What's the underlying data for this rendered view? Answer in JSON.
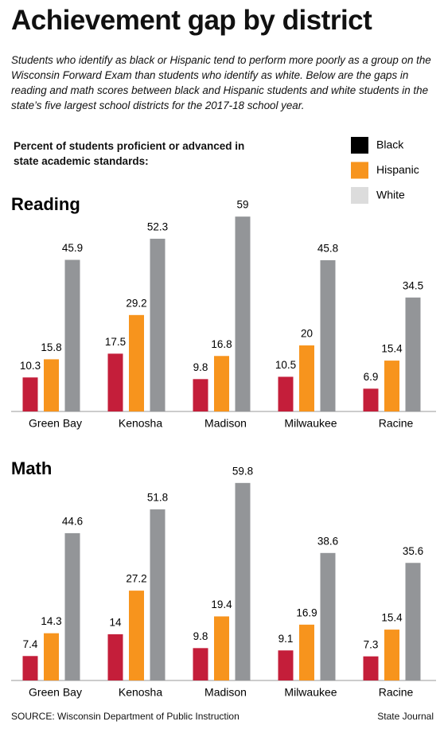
{
  "title": "Achievement gap by district",
  "subtitle": "Students who identify as black or Hispanic tend to perform more poorly as a group on the Wisconsin Forward Exam than students who identify as white. Below are the gaps in reading and math scores between black and Hispanic students and white students in the state’s five largest school districts for the 2017-18 school year.",
  "legend_title": "Percent of students proficient or advanced in state academic standards:",
  "source": "SOURCE: Wisconsin Department of Public Instruction",
  "credit": "State Journal",
  "chart_data": [
    {
      "type": "bar",
      "title": "Reading",
      "categories": [
        "Green Bay",
        "Kenosha",
        "Madison",
        "Milwaukee",
        "Racine"
      ],
      "series": [
        {
          "name": "Black",
          "color": "#c41e3a",
          "legend_color": "#000000",
          "values": [
            10.3,
            17.5,
            9.8,
            10.5,
            6.9
          ]
        },
        {
          "name": "Hispanic",
          "color": "#f7941d",
          "legend_color": "#f7941d",
          "values": [
            15.8,
            29.2,
            16.8,
            20,
            15.4
          ]
        },
        {
          "name": "White",
          "color": "#939598",
          "legend_color": "#dcdcdc",
          "values": [
            45.9,
            52.3,
            59,
            45.8,
            34.5
          ]
        }
      ]
    },
    {
      "type": "bar",
      "title": "Math",
      "categories": [
        "Green Bay",
        "Kenosha",
        "Madison",
        "Milwaukee",
        "Racine"
      ],
      "series": [
        {
          "name": "Black",
          "color": "#c41e3a",
          "legend_color": "#000000",
          "values": [
            7.4,
            14,
            9.8,
            9.1,
            7.3
          ]
        },
        {
          "name": "Hispanic",
          "color": "#f7941d",
          "legend_color": "#f7941d",
          "values": [
            14.3,
            27.2,
            19.4,
            16.9,
            15.4
          ]
        },
        {
          "name": "White",
          "color": "#939598",
          "legend_color": "#dcdcdc",
          "values": [
            44.6,
            51.8,
            59.8,
            38.6,
            35.6
          ]
        }
      ]
    }
  ]
}
